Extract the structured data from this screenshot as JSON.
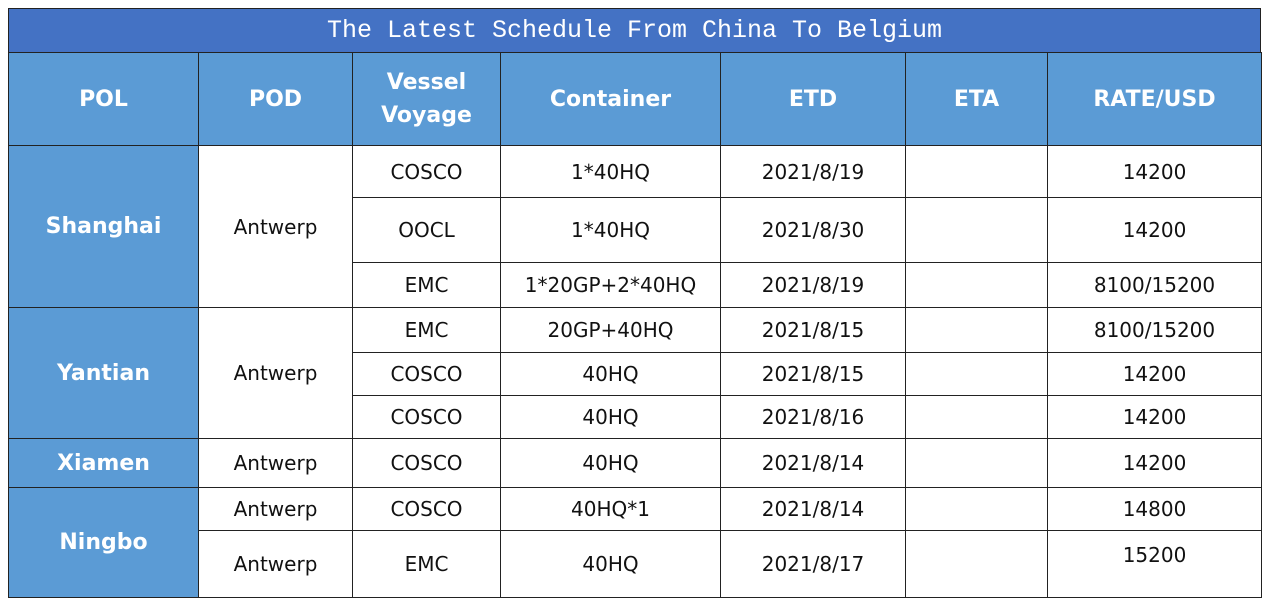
{
  "table": {
    "title": "The Latest Schedule From China To Belgium",
    "headers": [
      "POL",
      "POD",
      "Vessel\nVoyage",
      "Container",
      "ETD",
      "ETA",
      "RATE/USD"
    ],
    "groups": [
      {
        "pol": "Shanghai",
        "pod": "Antwerp",
        "rows": [
          {
            "vessel": "COSCO",
            "container": "1*40HQ",
            "etd": "2021/8/19",
            "rate": "14200"
          },
          {
            "vessel": "OOCL",
            "container": "1*40HQ",
            "etd": "2021/8/30",
            "rate": "14200"
          },
          {
            "vessel": "EMC",
            "container": "1*20GP+2*40HQ",
            "etd": "2021/8/19",
            "rate": "8100/15200"
          }
        ]
      },
      {
        "pol": "Yantian",
        "pod": "Antwerp",
        "rows": [
          {
            "vessel": "EMC",
            "container": "20GP+40HQ",
            "etd": "2021/8/15",
            "rate": "8100/15200"
          },
          {
            "vessel": "COSCO",
            "container": "40HQ",
            "etd": "2021/8/15",
            "rate": "14200"
          },
          {
            "vessel": "COSCO",
            "container": "40HQ",
            "etd": "2021/8/16",
            "rate": "14200"
          }
        ]
      },
      {
        "pol": "Xiamen",
        "pod": "Antwerp",
        "rows": [
          {
            "vessel": "COSCO",
            "container": "40HQ",
            "etd": "2021/8/14",
            "rate": "14200"
          }
        ]
      },
      {
        "pol": "Ningbo",
        "rows": [
          {
            "pod": "Antwerp",
            "vessel": "COSCO",
            "container": "40HQ*1",
            "etd": "2021/8/14",
            "rate": "14800"
          },
          {
            "pod": "Antwerp",
            "vessel": "EMC",
            "container": "40HQ",
            "etd": "2021/8/17",
            "rate": "15200"
          }
        ]
      }
    ]
  }
}
